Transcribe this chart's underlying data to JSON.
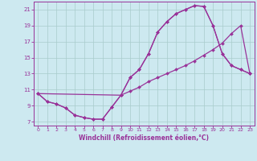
{
  "xlabel": "Windchill (Refroidissement éolien,°C)",
  "bg_color": "#cde9f0",
  "line_color": "#993399",
  "grid_color": "#a8cccc",
  "xlim": [
    -0.5,
    23.5
  ],
  "ylim": [
    6.5,
    22.0
  ],
  "yticks": [
    7,
    9,
    11,
    13,
    15,
    17,
    19,
    21
  ],
  "xticks": [
    0,
    1,
    2,
    3,
    4,
    5,
    6,
    7,
    8,
    9,
    10,
    11,
    12,
    13,
    14,
    15,
    16,
    17,
    18,
    19,
    20,
    21,
    22,
    23
  ],
  "curve1_x": [
    0,
    1,
    2,
    3,
    4,
    5,
    6,
    7,
    8,
    9,
    10,
    11,
    12,
    13,
    14,
    15,
    16,
    17,
    18,
    19,
    20,
    21,
    22,
    23
  ],
  "curve1_y": [
    10.5,
    9.5,
    9.2,
    8.7,
    7.8,
    7.5,
    7.3,
    7.3,
    8.8,
    10.3,
    12.5,
    13.5,
    15.5,
    18.2,
    19.5,
    20.5,
    21.0,
    21.5,
    21.4,
    19.0,
    15.5,
    14.0,
    13.5,
    13.0
  ],
  "curve2_x": [
    0,
    1,
    2,
    3,
    4,
    5,
    6,
    7,
    8,
    9,
    10,
    11,
    12,
    13,
    14,
    15,
    16,
    17,
    18,
    19,
    20,
    21,
    22,
    23
  ],
  "curve2_y": [
    10.5,
    9.5,
    9.2,
    8.7,
    7.8,
    7.5,
    7.3,
    7.3,
    8.8,
    10.3,
    10.8,
    11.3,
    12.0,
    12.5,
    13.0,
    13.5,
    14.0,
    14.6,
    15.3,
    16.0,
    16.8,
    18.0,
    19.0,
    13.0
  ],
  "curve3_x": [
    0,
    9,
    10,
    11,
    12,
    13,
    14,
    15,
    16,
    17,
    18,
    19,
    20,
    21,
    22,
    23
  ],
  "curve3_y": [
    10.5,
    10.3,
    12.5,
    13.5,
    15.5,
    18.2,
    19.5,
    20.5,
    21.0,
    21.5,
    21.4,
    19.0,
    15.5,
    14.0,
    13.5,
    13.0
  ]
}
